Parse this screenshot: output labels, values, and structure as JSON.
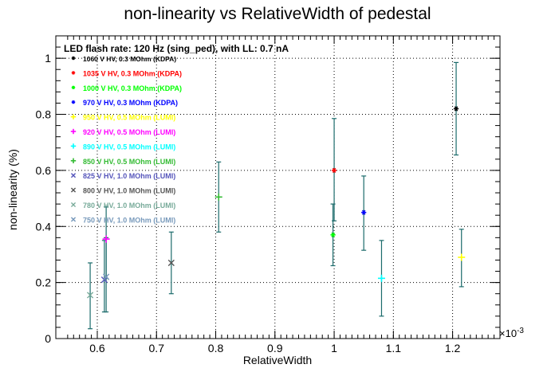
{
  "chart_data": {
    "type": "scatter",
    "title": "non-linearity vs RelativeWidth of pedestal",
    "subtitle": "LED flash rate: 120 Hz  (sing_ped), with LL: 0.7 nA",
    "xlabel": "RelativeWidth",
    "ylabel": "non-linearity (%)",
    "x_exponent_label": "×10",
    "x_exponent_power": "-3",
    "xlim": [
      0.00053,
      0.00128
    ],
    "ylim": [
      0,
      1.08
    ],
    "x_ticks": [
      0.0006,
      0.0007,
      0.0008,
      0.0009,
      0.001,
      0.0011,
      0.0012
    ],
    "x_tick_labels": [
      "0.6",
      "0.7",
      "0.8",
      "0.9",
      "1",
      "1.1",
      "1.2"
    ],
    "y_ticks": [
      0,
      0.2,
      0.4,
      0.6,
      0.8,
      1
    ],
    "y_tick_labels": [
      "0",
      "0.2",
      "0.4",
      "0.6",
      "0.8",
      "1"
    ],
    "grid": true,
    "legend_position": "top-left",
    "errorbar_color": "#1b6b6b",
    "series": [
      {
        "name": "1060 V HV, 0.3 MOhm (KDPA)",
        "marker": "*",
        "color": "#000000",
        "x": 0.001206,
        "y": 0.82,
        "yerr_low": 0.655,
        "yerr_high": 0.985
      },
      {
        "name": "1035 V HV, 0.3 MOhm (KDPA)",
        "marker": "*",
        "color": "#ff0000",
        "x": 0.001,
        "y": 0.6,
        "yerr_low": 0.42,
        "yerr_high": 0.785
      },
      {
        "name": "1000 V HV, 0.3 MOhm (KDPA)",
        "marker": "*",
        "color": "#00ff00",
        "x": 0.000998,
        "y": 0.37,
        "yerr_low": 0.26,
        "yerr_high": 0.48
      },
      {
        "name": "970 V HV, 0.3 MOhm (KDPA)",
        "marker": "*",
        "color": "#0000ff",
        "x": 0.00105,
        "y": 0.45,
        "yerr_low": 0.315,
        "yerr_high": 0.58
      },
      {
        "name": "950 V HV, 0.5 MOhm (LUMI)",
        "marker": "+",
        "color": "#ffff00",
        "x": 0.001215,
        "y": 0.29,
        "yerr_low": 0.185,
        "yerr_high": 0.39
      },
      {
        "name": "920 V HV, 0.5 MOhm (LUMI)",
        "marker": "+",
        "color": "#ff00ff",
        "x": 0.000615,
        "y": 0.355,
        "yerr_low": 0.215,
        "yerr_high": 0.47
      },
      {
        "name": "890 V HV, 0.5 MOhm (LUMI)",
        "marker": "+",
        "color": "#00ffff",
        "x": 0.00108,
        "y": 0.215,
        "yerr_low": 0.08,
        "yerr_high": 0.35
      },
      {
        "name": "850 V HV, 0.5 MOhm (LUMI)",
        "marker": "+",
        "color": "#33bb33",
        "x": 0.000805,
        "y": 0.505,
        "yerr_low": 0.38,
        "yerr_high": 0.63
      },
      {
        "name": "825 V HV, 1.0 MOhm (LUMI)",
        "marker": "x",
        "color": "#5555bb",
        "x": 0.000612,
        "y": 0.21,
        "yerr_low": 0.095,
        "yerr_high": 0.35
      },
      {
        "name": "800 V HV, 1.0 MOhm (LUMI)",
        "marker": "x",
        "color": "#555555",
        "x": 0.000725,
        "y": 0.27,
        "yerr_low": 0.16,
        "yerr_high": 0.38
      },
      {
        "name": "780 V HV, 1.0 MOhm (LUMI)",
        "marker": "x",
        "color": "#77aa99",
        "x": 0.000588,
        "y": 0.155,
        "yerr_low": 0.035,
        "yerr_high": 0.27
      },
      {
        "name": "750 V HV, 1.0 MOhm (LUMI)",
        "marker": "x",
        "color": "#7799bb",
        "x": 0.000615,
        "y": 0.22,
        "yerr_low": 0.095,
        "yerr_high": 0.36
      }
    ]
  }
}
